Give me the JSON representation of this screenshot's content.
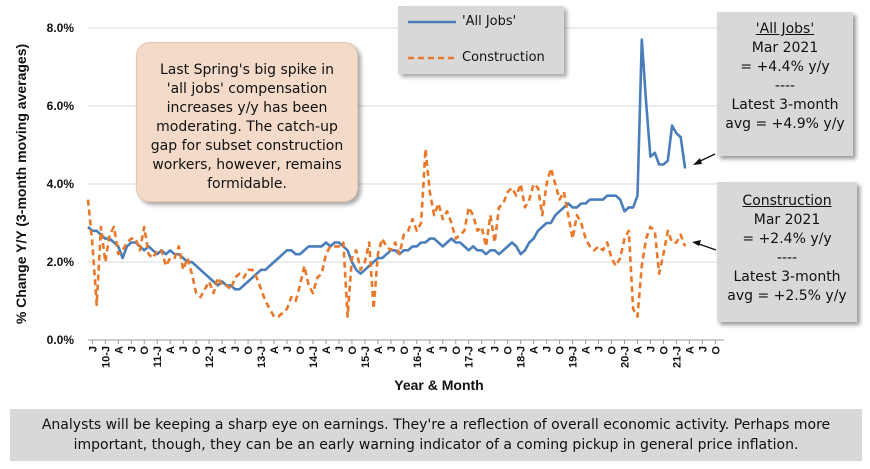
{
  "colors": {
    "all_jobs": "#4a7ebb",
    "construction": "#e8782a"
  },
  "callout": {
    "text": "Last Spring's big spike in 'all jobs' compensation increases y/y has been moderating. The catch-up gap for subset construction workers, however, remains formidable."
  },
  "all_jobs_box": {
    "title": "'All Jobs'",
    "line1": "Mar 2021",
    "line2": "= +4.4% y/y",
    "sep": "----",
    "line3": "Latest 3-month",
    "line4": "avg = +4.9% y/y"
  },
  "construction_box": {
    "title": "Construction",
    "line1": "Mar 2021",
    "line2": "= +2.4% y/y",
    "sep": "----",
    "line3": "Latest 3-month",
    "line4": "avg = +2.5% y/y"
  },
  "footer": {
    "text": "Analysts will be keeping a sharp eye on earnings. They're a reflection of overall economic activity. Perhaps more important, though, they can be an early warning indicator of a coming pickup in general price inflation."
  },
  "chart_data": {
    "type": "line",
    "title": "",
    "xlabel": "Year & Month",
    "ylabel": "% Change Y/Y (3-month moving averages)",
    "ylim": [
      0,
      8
    ],
    "yticks": [
      "0.0%",
      "2.0%",
      "4.0%",
      "6.0%",
      "8.0%"
    ],
    "grid": true,
    "legend_position": "top-center",
    "xticks": [
      "J",
      "10-J",
      "A",
      "J",
      "O",
      "11-J",
      "A",
      "J",
      "O",
      "12-J",
      "A",
      "J",
      "O",
      "13-J",
      "A",
      "J",
      "O",
      "14-J",
      "A",
      "J",
      "O",
      "15-J",
      "A",
      "J",
      "O",
      "16-J",
      "A",
      "J",
      "O",
      "17-J",
      "A",
      "J",
      "O",
      "18-J",
      "A",
      "J",
      "O",
      "19-J",
      "A",
      "J",
      "O",
      "20-J",
      "A",
      "J",
      "O",
      "21-J",
      "A",
      "J",
      "O"
    ],
    "x_start": "2009-10",
    "x_step_months": 1,
    "series": [
      {
        "name": "'All Jobs'",
        "values": [
          2.9,
          2.8,
          2.8,
          2.7,
          2.6,
          2.6,
          2.5,
          2.4,
          2.1,
          2.4,
          2.5,
          2.5,
          2.4,
          2.3,
          2.4,
          2.3,
          2.2,
          2.3,
          2.2,
          2.3,
          2.2,
          2.2,
          2.1,
          2.0,
          2.0,
          1.9,
          1.8,
          1.7,
          1.6,
          1.5,
          1.4,
          1.5,
          1.4,
          1.4,
          1.3,
          1.3,
          1.4,
          1.5,
          1.6,
          1.7,
          1.8,
          1.8,
          1.9,
          2.0,
          2.1,
          2.2,
          2.3,
          2.3,
          2.2,
          2.2,
          2.3,
          2.4,
          2.4,
          2.4,
          2.4,
          2.5,
          2.4,
          2.5,
          2.5,
          2.4,
          2.3,
          2.0,
          1.8,
          1.7,
          1.8,
          1.9,
          2.0,
          2.1,
          2.1,
          2.2,
          2.3,
          2.3,
          2.2,
          2.3,
          2.3,
          2.4,
          2.4,
          2.5,
          2.5,
          2.6,
          2.6,
          2.5,
          2.4,
          2.5,
          2.6,
          2.5,
          2.5,
          2.4,
          2.3,
          2.4,
          2.3,
          2.3,
          2.2,
          2.3,
          2.3,
          2.2,
          2.3,
          2.4,
          2.5,
          2.4,
          2.2,
          2.3,
          2.5,
          2.6,
          2.8,
          2.9,
          3.0,
          3.0,
          3.2,
          3.3,
          3.4,
          3.5,
          3.4,
          3.4,
          3.5,
          3.5,
          3.6,
          3.6,
          3.6,
          3.6,
          3.7,
          3.7,
          3.7,
          3.6,
          3.3,
          3.4,
          3.4,
          3.7,
          7.7,
          6.1,
          4.7,
          4.8,
          4.5,
          4.5,
          4.6,
          5.5,
          5.3,
          5.2,
          4.4
        ]
      },
      {
        "name": "Construction",
        "values": [
          3.6,
          2.5,
          0.9,
          2.9,
          2.0,
          2.7,
          2.9,
          2.2,
          2.3,
          2.5,
          2.6,
          2.6,
          2.3,
          2.9,
          2.2,
          2.1,
          2.3,
          2.3,
          1.9,
          2.1,
          2.1,
          2.4,
          1.8,
          2.1,
          1.7,
          1.2,
          1.1,
          1.3,
          1.5,
          1.2,
          1.6,
          1.4,
          1.4,
          1.3,
          1.6,
          1.7,
          1.6,
          1.8,
          1.8,
          1.6,
          1.3,
          1.0,
          0.8,
          0.6,
          0.6,
          0.7,
          0.8,
          1.1,
          1.0,
          1.4,
          1.9,
          1.4,
          1.2,
          1.6,
          1.7,
          2.2,
          2.4,
          2.4,
          2.4,
          2.5,
          0.6,
          2.1,
          2.3,
          1.8,
          2.0,
          2.5,
          0.8,
          2.2,
          2.6,
          2.4,
          2.3,
          2.5,
          2.2,
          2.7,
          2.8,
          3.1,
          2.8,
          3.0,
          4.9,
          3.8,
          3.2,
          3.5,
          3.1,
          3.3,
          3.0,
          2.6,
          2.7,
          2.8,
          3.4,
          3.2,
          2.8,
          2.9,
          2.4,
          3.2,
          2.5,
          3.4,
          3.5,
          3.8,
          3.9,
          3.7,
          4.0,
          3.4,
          3.6,
          4.0,
          3.9,
          3.2,
          4.0,
          4.4,
          4.0,
          3.6,
          3.8,
          3.2,
          2.6,
          3.2,
          3.0,
          2.6,
          2.4,
          2.3,
          2.4,
          2.3,
          2.5,
          2.1,
          1.9,
          2.1,
          2.6,
          2.8,
          0.8,
          0.6,
          1.9,
          2.6,
          2.9,
          2.8,
          1.7,
          2.2,
          2.8,
          2.5,
          2.5,
          2.7,
          2.4
        ]
      }
    ],
    "legend": [
      "'All Jobs'",
      "Construction"
    ]
  }
}
